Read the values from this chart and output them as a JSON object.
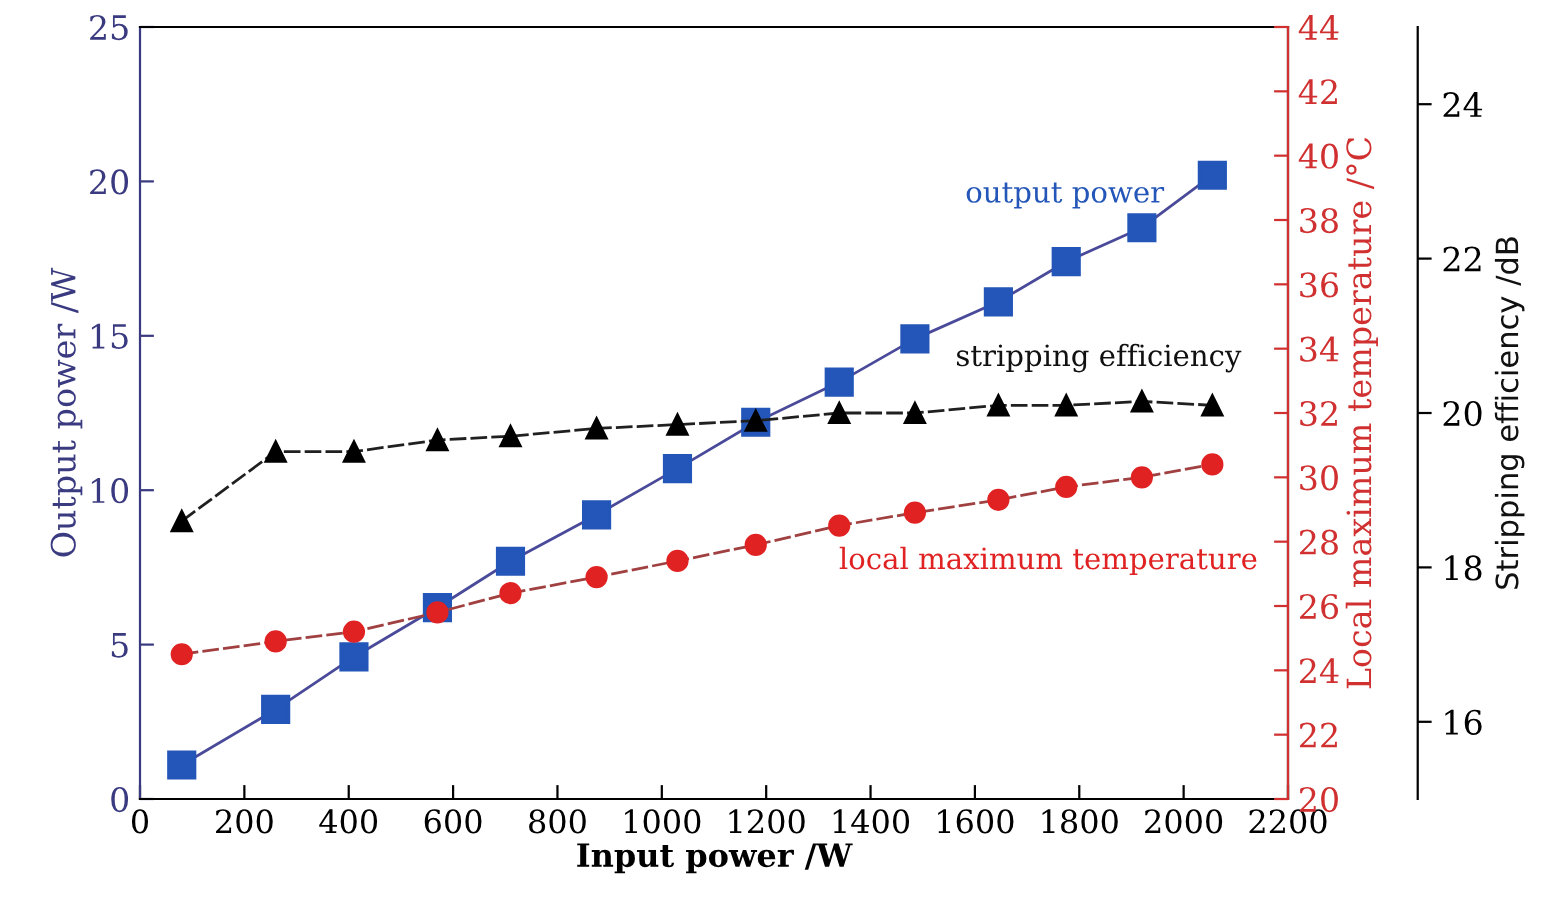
{
  "chart_data": {
    "type": "line",
    "xlabel": "Input power /W",
    "ylabel": "Output power /W",
    "y2label": "Local maximum temperature /°C",
    "y3label": "Stripping efficiency /dB",
    "x": [
      80,
      260,
      410,
      570,
      710,
      875,
      1030,
      1180,
      1340,
      1485,
      1645,
      1775,
      1920,
      2055
    ],
    "xlim": [
      0,
      2200
    ],
    "xticks": [
      0,
      200,
      400,
      600,
      800,
      1000,
      1200,
      1400,
      1600,
      1800,
      2000,
      2200
    ],
    "ylim": [
      0,
      25
    ],
    "yticks": [
      0,
      5,
      10,
      15,
      20,
      25
    ],
    "y2lim": [
      20,
      44
    ],
    "y2ticks": [
      20,
      22,
      24,
      26,
      28,
      30,
      32,
      34,
      36,
      38,
      40,
      42,
      44
    ],
    "y3lim": [
      15,
      25
    ],
    "y3ticks": [
      16,
      18,
      20,
      22,
      24
    ],
    "grid": false,
    "legend": false,
    "series": [
      {
        "name": "output power",
        "color": "#2356b8",
        "marker": "square",
        "line_style": "solid",
        "values": [
          1.1,
          2.9,
          4.6,
          6.2,
          7.7,
          9.2,
          10.7,
          12.2,
          13.5,
          14.9,
          16.1,
          17.4,
          18.5,
          20.2
        ]
      },
      {
        "name": "local maximum temperature",
        "color": "#e02222",
        "marker": "circle",
        "line_style": "dashed",
        "axis": "y2",
        "values": [
          24.5,
          24.9,
          25.2,
          25.8,
          26.4,
          26.9,
          27.4,
          27.9,
          28.5,
          28.9,
          29.3,
          29.7,
          30.0,
          30.4
        ]
      },
      {
        "name": "stripping efficiency",
        "color": "#000000",
        "marker": "triangle",
        "line_style": "dashed",
        "axis": "y3",
        "values": [
          18.6,
          19.5,
          19.5,
          19.65,
          19.7,
          19.8,
          19.85,
          19.9,
          20.0,
          20.0,
          20.1,
          20.1,
          20.15,
          20.1
        ]
      }
    ]
  }
}
